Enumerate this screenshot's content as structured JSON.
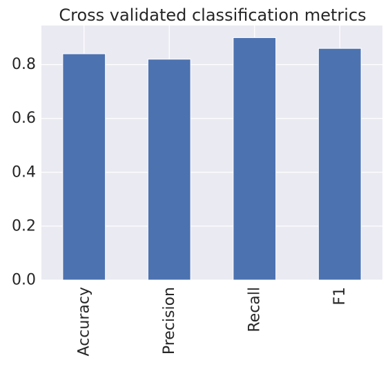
{
  "chart_data": {
    "type": "bar",
    "title": "Cross validated classification metrics",
    "xlabel": "",
    "ylabel": "",
    "categories": [
      "Accuracy",
      "Precision",
      "Recall",
      "F1"
    ],
    "values": [
      0.84,
      0.82,
      0.9,
      0.86
    ],
    "ylim": [
      0,
      0.945
    ],
    "yticks": [
      "0.0",
      "0.2",
      "0.4",
      "0.6",
      "0.8"
    ],
    "grid": true,
    "legend": "none",
    "colors": {
      "bar": "#4c72b0",
      "plot_background": "#eaeaf2",
      "grid": "#ffffff",
      "text": "#262626"
    }
  }
}
